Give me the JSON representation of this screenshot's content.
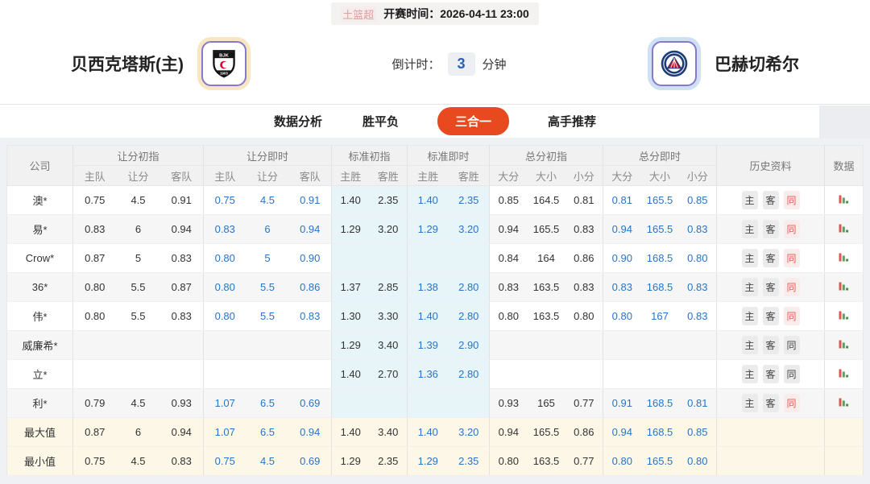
{
  "match_bar": {
    "league": "土篮超",
    "kickoff": "开赛时间：2026-04-11 23:00"
  },
  "teams": {
    "home": {
      "name": "贝西克塔斯(主)",
      "logo": "besiktas-crest"
    },
    "away": {
      "name": "巴赫切希尔",
      "logo": "bahcesehir-crest"
    }
  },
  "countdown": {
    "label": "倒计时：",
    "value": "3",
    "unit": "分钟"
  },
  "tabs": [
    {
      "label": "数据分析",
      "active": false
    },
    {
      "label": "胜平负",
      "active": false
    },
    {
      "label": "三合一",
      "active": true
    },
    {
      "label": "高手推荐",
      "active": false
    }
  ],
  "colors": {
    "tab_active": "#e8491f",
    "live_odds_blue": "#2a74c5",
    "same_history_red": "#e05a50",
    "std_column_bg": "#e7f5f8",
    "summary_row_bg": "#fcf7e6"
  },
  "table": {
    "header": {
      "company": "公司",
      "groups": [
        {
          "label": "让分初指",
          "cols": [
            "主队",
            "让分",
            "客队"
          ],
          "kind": "init"
        },
        {
          "label": "让分即时",
          "cols": [
            "主队",
            "让分",
            "客队"
          ],
          "kind": "live"
        },
        {
          "label": "标准初指",
          "cols": [
            "主胜",
            "客胜"
          ],
          "kind": "init std"
        },
        {
          "label": "标准即时",
          "cols": [
            "主胜",
            "客胜"
          ],
          "kind": "live std"
        },
        {
          "label": "总分初指",
          "cols": [
            "大分",
            "大小",
            "小分"
          ],
          "kind": "init"
        },
        {
          "label": "总分即时",
          "cols": [
            "大分",
            "大小",
            "小分"
          ],
          "kind": "live"
        }
      ],
      "history": "历史资料",
      "history_buttons": [
        "主",
        "客",
        "同"
      ],
      "data": "数据"
    },
    "rows": [
      {
        "company": "澳*",
        "hi": [
          "0.75",
          "4.5",
          "0.91"
        ],
        "hl": [
          "0.75",
          "4.5",
          "0.91"
        ],
        "si": [
          "1.40",
          "2.35"
        ],
        "sl": [
          "1.40",
          "2.35"
        ],
        "ti": [
          "0.85",
          "164.5",
          "0.81"
        ],
        "tl": [
          "0.81",
          "165.5",
          "0.85"
        ],
        "history": true,
        "tong_red": true,
        "chart": true,
        "summary": false
      },
      {
        "company": "易*",
        "hi": [
          "0.83",
          "6",
          "0.94"
        ],
        "hl": [
          "0.83",
          "6",
          "0.94"
        ],
        "si": [
          "1.29",
          "3.20"
        ],
        "sl": [
          "1.29",
          "3.20"
        ],
        "ti": [
          "0.94",
          "165.5",
          "0.83"
        ],
        "tl": [
          "0.94",
          "165.5",
          "0.83"
        ],
        "history": true,
        "tong_red": true,
        "chart": true,
        "summary": false
      },
      {
        "company": "Crow*",
        "hi": [
          "0.87",
          "5",
          "0.83"
        ],
        "hl": [
          "0.80",
          "5",
          "0.90"
        ],
        "si": [
          "",
          ""
        ],
        "sl": [
          "",
          ""
        ],
        "ti": [
          "0.84",
          "164",
          "0.86"
        ],
        "tl": [
          "0.90",
          "168.5",
          "0.80"
        ],
        "history": true,
        "tong_red": true,
        "chart": true,
        "summary": false
      },
      {
        "company": "36*",
        "hi": [
          "0.80",
          "5.5",
          "0.87"
        ],
        "hl": [
          "0.80",
          "5.5",
          "0.86"
        ],
        "si": [
          "1.37",
          "2.85"
        ],
        "sl": [
          "1.38",
          "2.80"
        ],
        "ti": [
          "0.83",
          "163.5",
          "0.83"
        ],
        "tl": [
          "0.83",
          "168.5",
          "0.83"
        ],
        "history": true,
        "tong_red": true,
        "chart": true,
        "summary": false
      },
      {
        "company": "伟*",
        "hi": [
          "0.80",
          "5.5",
          "0.83"
        ],
        "hl": [
          "0.80",
          "5.5",
          "0.83"
        ],
        "si": [
          "1.30",
          "3.30"
        ],
        "sl": [
          "1.40",
          "2.80"
        ],
        "ti": [
          "0.80",
          "163.5",
          "0.80"
        ],
        "tl": [
          "0.80",
          "167",
          "0.83"
        ],
        "history": true,
        "tong_red": true,
        "chart": true,
        "summary": false
      },
      {
        "company": "威廉希*",
        "hi": [
          "",
          "",
          ""
        ],
        "hl": [
          "",
          "",
          ""
        ],
        "si": [
          "1.29",
          "3.40"
        ],
        "sl": [
          "1.39",
          "2.90"
        ],
        "ti": [
          "",
          "",
          ""
        ],
        "tl": [
          "",
          "",
          ""
        ],
        "history": true,
        "tong_red": false,
        "chart": true,
        "summary": false
      },
      {
        "company": "立*",
        "hi": [
          "",
          "",
          ""
        ],
        "hl": [
          "",
          "",
          ""
        ],
        "si": [
          "1.40",
          "2.70"
        ],
        "sl": [
          "1.36",
          "2.80"
        ],
        "ti": [
          "",
          "",
          ""
        ],
        "tl": [
          "",
          "",
          ""
        ],
        "history": true,
        "tong_red": false,
        "chart": true,
        "summary": false
      },
      {
        "company": "利*",
        "hi": [
          "0.79",
          "4.5",
          "0.93"
        ],
        "hl": [
          "1.07",
          "6.5",
          "0.69"
        ],
        "si": [
          "",
          ""
        ],
        "sl": [
          "",
          ""
        ],
        "ti": [
          "0.93",
          "165",
          "0.77"
        ],
        "tl": [
          "0.91",
          "168.5",
          "0.81"
        ],
        "history": true,
        "tong_red": true,
        "chart": true,
        "summary": false
      },
      {
        "company": "最大值",
        "hi": [
          "0.87",
          "6",
          "0.94"
        ],
        "hl": [
          "1.07",
          "6.5",
          "0.94"
        ],
        "si": [
          "1.40",
          "3.40"
        ],
        "sl": [
          "1.40",
          "3.20"
        ],
        "ti": [
          "0.94",
          "165.5",
          "0.86"
        ],
        "tl": [
          "0.94",
          "168.5",
          "0.85"
        ],
        "history": false,
        "tong_red": false,
        "chart": false,
        "summary": true
      },
      {
        "company": "最小值",
        "hi": [
          "0.75",
          "4.5",
          "0.83"
        ],
        "hl": [
          "0.75",
          "4.5",
          "0.69"
        ],
        "si": [
          "1.29",
          "2.35"
        ],
        "sl": [
          "1.29",
          "2.35"
        ],
        "ti": [
          "0.80",
          "163.5",
          "0.77"
        ],
        "tl": [
          "0.80",
          "165.5",
          "0.80"
        ],
        "history": false,
        "tong_red": false,
        "chart": false,
        "summary": true
      }
    ]
  }
}
